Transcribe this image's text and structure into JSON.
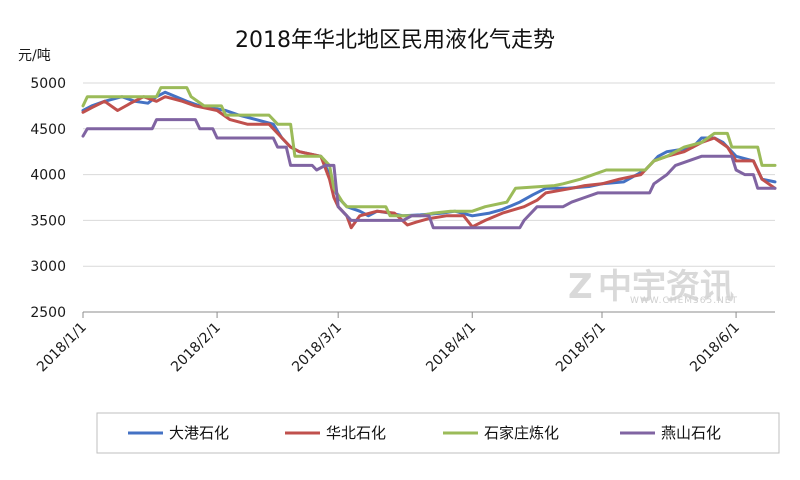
{
  "chart_data": {
    "type": "line",
    "title": "2018年华北地区民用液化气走势",
    "ylabel": "元/吨",
    "xlabel": "",
    "ylim": [
      2500,
      5000
    ],
    "yticks": [
      2500,
      3000,
      3500,
      4000,
      4500,
      5000
    ],
    "x_range": [
      "2018-01-01",
      "2018-06-10"
    ],
    "xticks": [
      {
        "date": "2018-01-01",
        "label": "2018/1/1"
      },
      {
        "date": "2018-02-01",
        "label": "2018/2/1"
      },
      {
        "date": "2018-03-01",
        "label": "2018/3/1"
      },
      {
        "date": "2018-04-01",
        "label": "2018/4/1"
      },
      {
        "date": "2018-05-01",
        "label": "2018/5/1"
      },
      {
        "date": "2018-06-01",
        "label": "2018/6/1"
      }
    ],
    "grid": "horizontal",
    "legend_position": "bottom",
    "series": [
      {
        "name": "大港石化",
        "color": "#4472C4",
        "points": [
          [
            "2018-01-01",
            4700
          ],
          [
            "2018-01-03",
            4750
          ],
          [
            "2018-01-06",
            4800
          ],
          [
            "2018-01-10",
            4850
          ],
          [
            "2018-01-13",
            4800
          ],
          [
            "2018-01-16",
            4780
          ],
          [
            "2018-01-18",
            4850
          ],
          [
            "2018-01-20",
            4900
          ],
          [
            "2018-01-25",
            4800
          ],
          [
            "2018-01-28",
            4750
          ],
          [
            "2018-02-03",
            4700
          ],
          [
            "2018-02-06",
            4650
          ],
          [
            "2018-02-10",
            4600
          ],
          [
            "2018-02-14",
            4550
          ],
          [
            "2018-02-16",
            4400
          ],
          [
            "2018-02-18",
            4300
          ],
          [
            "2018-02-20",
            4250
          ],
          [
            "2018-02-25",
            4200
          ],
          [
            "2018-02-27",
            4000
          ],
          [
            "2018-02-28",
            3850
          ],
          [
            "2018-03-01",
            3750
          ],
          [
            "2018-03-03",
            3650
          ],
          [
            "2018-03-06",
            3600
          ],
          [
            "2018-03-08",
            3550
          ],
          [
            "2018-03-10",
            3600
          ],
          [
            "2018-03-13",
            3580
          ],
          [
            "2018-03-16",
            3550
          ],
          [
            "2018-03-20",
            3560
          ],
          [
            "2018-03-25",
            3580
          ],
          [
            "2018-03-28",
            3600
          ],
          [
            "2018-04-01",
            3550
          ],
          [
            "2018-04-05",
            3580
          ],
          [
            "2018-04-08",
            3620
          ],
          [
            "2018-04-12",
            3700
          ],
          [
            "2018-04-15",
            3780
          ],
          [
            "2018-04-18",
            3850
          ],
          [
            "2018-04-23",
            3850
          ],
          [
            "2018-04-28",
            3870
          ],
          [
            "2018-05-01",
            3900
          ],
          [
            "2018-05-06",
            3920
          ],
          [
            "2018-05-11",
            4050
          ],
          [
            "2018-05-14",
            4200
          ],
          [
            "2018-05-16",
            4250
          ],
          [
            "2018-05-20",
            4280
          ],
          [
            "2018-05-22",
            4300
          ],
          [
            "2018-05-24",
            4400
          ],
          [
            "2018-05-27",
            4400
          ],
          [
            "2018-05-29",
            4350
          ],
          [
            "2018-06-01",
            4200
          ],
          [
            "2018-06-05",
            4150
          ],
          [
            "2018-06-07",
            3950
          ],
          [
            "2018-06-10",
            3920
          ]
        ]
      },
      {
        "name": "华北石化",
        "color": "#C0504D",
        "points": [
          [
            "2018-01-01",
            4680
          ],
          [
            "2018-01-03",
            4730
          ],
          [
            "2018-01-06",
            4800
          ],
          [
            "2018-01-09",
            4700
          ],
          [
            "2018-01-12",
            4780
          ],
          [
            "2018-01-15",
            4850
          ],
          [
            "2018-01-18",
            4800
          ],
          [
            "2018-01-20",
            4850
          ],
          [
            "2018-01-24",
            4800
          ],
          [
            "2018-01-27",
            4750
          ],
          [
            "2018-02-01",
            4700
          ],
          [
            "2018-02-04",
            4600
          ],
          [
            "2018-02-08",
            4550
          ],
          [
            "2018-02-13",
            4550
          ],
          [
            "2018-02-15",
            4450
          ],
          [
            "2018-02-18",
            4300
          ],
          [
            "2018-02-20",
            4250
          ],
          [
            "2018-02-25",
            4200
          ],
          [
            "2018-02-27",
            3950
          ],
          [
            "2018-02-28",
            3750
          ],
          [
            "2018-03-01",
            3650
          ],
          [
            "2018-03-03",
            3550
          ],
          [
            "2018-03-04",
            3420
          ],
          [
            "2018-03-06",
            3550
          ],
          [
            "2018-03-10",
            3600
          ],
          [
            "2018-03-14",
            3580
          ],
          [
            "2018-03-17",
            3450
          ],
          [
            "2018-03-19",
            3480
          ],
          [
            "2018-03-22",
            3520
          ],
          [
            "2018-03-26",
            3550
          ],
          [
            "2018-03-30",
            3550
          ],
          [
            "2018-04-01",
            3430
          ],
          [
            "2018-04-04",
            3500
          ],
          [
            "2018-04-08",
            3580
          ],
          [
            "2018-04-13",
            3650
          ],
          [
            "2018-04-16",
            3720
          ],
          [
            "2018-04-18",
            3800
          ],
          [
            "2018-04-24",
            3850
          ],
          [
            "2018-04-27",
            3880
          ],
          [
            "2018-05-01",
            3900
          ],
          [
            "2018-05-05",
            3950
          ],
          [
            "2018-05-10",
            4000
          ],
          [
            "2018-05-13",
            4150
          ],
          [
            "2018-05-16",
            4200
          ],
          [
            "2018-05-20",
            4250
          ],
          [
            "2018-05-24",
            4350
          ],
          [
            "2018-05-27",
            4400
          ],
          [
            "2018-05-30",
            4300
          ],
          [
            "2018-06-01",
            4150
          ],
          [
            "2018-06-05",
            4150
          ],
          [
            "2018-06-07",
            3950
          ],
          [
            "2018-06-10",
            3850
          ]
        ]
      },
      {
        "name": "石家庄炼化",
        "color": "#9BBB59",
        "points": [
          [
            "2018-01-01",
            4750
          ],
          [
            "2018-01-02",
            4850
          ],
          [
            "2018-01-18",
            4850
          ],
          [
            "2018-01-19",
            4950
          ],
          [
            "2018-01-25",
            4950
          ],
          [
            "2018-01-26",
            4850
          ],
          [
            "2018-01-29",
            4750
          ],
          [
            "2018-02-02",
            4750
          ],
          [
            "2018-02-03",
            4650
          ],
          [
            "2018-02-13",
            4650
          ],
          [
            "2018-02-15",
            4550
          ],
          [
            "2018-02-18",
            4550
          ],
          [
            "2018-02-19",
            4200
          ],
          [
            "2018-02-25",
            4200
          ],
          [
            "2018-02-27",
            4100
          ],
          [
            "2018-02-28",
            3850
          ],
          [
            "2018-03-02",
            3700
          ],
          [
            "2018-03-03",
            3650
          ],
          [
            "2018-03-12",
            3650
          ],
          [
            "2018-03-13",
            3550
          ],
          [
            "2018-03-20",
            3550
          ],
          [
            "2018-03-23",
            3580
          ],
          [
            "2018-03-27",
            3600
          ],
          [
            "2018-04-01",
            3600
          ],
          [
            "2018-04-04",
            3650
          ],
          [
            "2018-04-09",
            3700
          ],
          [
            "2018-04-11",
            3850
          ],
          [
            "2018-04-20",
            3880
          ],
          [
            "2018-04-22",
            3900
          ],
          [
            "2018-04-26",
            3950
          ],
          [
            "2018-04-29",
            4000
          ],
          [
            "2018-05-02",
            4050
          ],
          [
            "2018-05-11",
            4050
          ],
          [
            "2018-05-13",
            4150
          ],
          [
            "2018-05-16",
            4200
          ],
          [
            "2018-05-20",
            4300
          ],
          [
            "2018-05-24",
            4350
          ],
          [
            "2018-05-27",
            4450
          ],
          [
            "2018-05-30",
            4450
          ],
          [
            "2018-05-31",
            4300
          ],
          [
            "2018-06-06",
            4300
          ],
          [
            "2018-06-07",
            4100
          ],
          [
            "2018-06-10",
            4100
          ]
        ]
      },
      {
        "name": "燕山石化",
        "color": "#8064A2",
        "points": [
          [
            "2018-01-01",
            4420
          ],
          [
            "2018-01-02",
            4500
          ],
          [
            "2018-01-17",
            4500
          ],
          [
            "2018-01-18",
            4600
          ],
          [
            "2018-01-27",
            4600
          ],
          [
            "2018-01-28",
            4500
          ],
          [
            "2018-01-31",
            4500
          ],
          [
            "2018-02-01",
            4400
          ],
          [
            "2018-02-14",
            4400
          ],
          [
            "2018-02-15",
            4300
          ],
          [
            "2018-02-17",
            4300
          ],
          [
            "2018-02-18",
            4100
          ],
          [
            "2018-02-23",
            4100
          ],
          [
            "2018-02-24",
            4050
          ],
          [
            "2018-02-26",
            4100
          ],
          [
            "2018-02-28",
            4100
          ],
          [
            "2018-03-01",
            3650
          ],
          [
            "2018-03-03",
            3550
          ],
          [
            "2018-03-04",
            3500
          ],
          [
            "2018-03-16",
            3500
          ],
          [
            "2018-03-18",
            3550
          ],
          [
            "2018-03-22",
            3550
          ],
          [
            "2018-03-23",
            3420
          ],
          [
            "2018-04-12",
            3420
          ],
          [
            "2018-04-13",
            3500
          ],
          [
            "2018-04-16",
            3650
          ],
          [
            "2018-04-22",
            3650
          ],
          [
            "2018-04-24",
            3700
          ],
          [
            "2018-04-27",
            3750
          ],
          [
            "2018-04-30",
            3800
          ],
          [
            "2018-05-12",
            3800
          ],
          [
            "2018-05-13",
            3900
          ],
          [
            "2018-05-16",
            4000
          ],
          [
            "2018-05-18",
            4100
          ],
          [
            "2018-05-24",
            4200
          ],
          [
            "2018-05-31",
            4200
          ],
          [
            "2018-06-01",
            4050
          ],
          [
            "2018-06-03",
            4000
          ],
          [
            "2018-06-05",
            4000
          ],
          [
            "2018-06-06",
            3850
          ],
          [
            "2018-06-10",
            3850
          ]
        ]
      }
    ]
  },
  "watermark": {
    "brand": "中宇资讯",
    "url": "WWW.CHEM365.NET"
  }
}
